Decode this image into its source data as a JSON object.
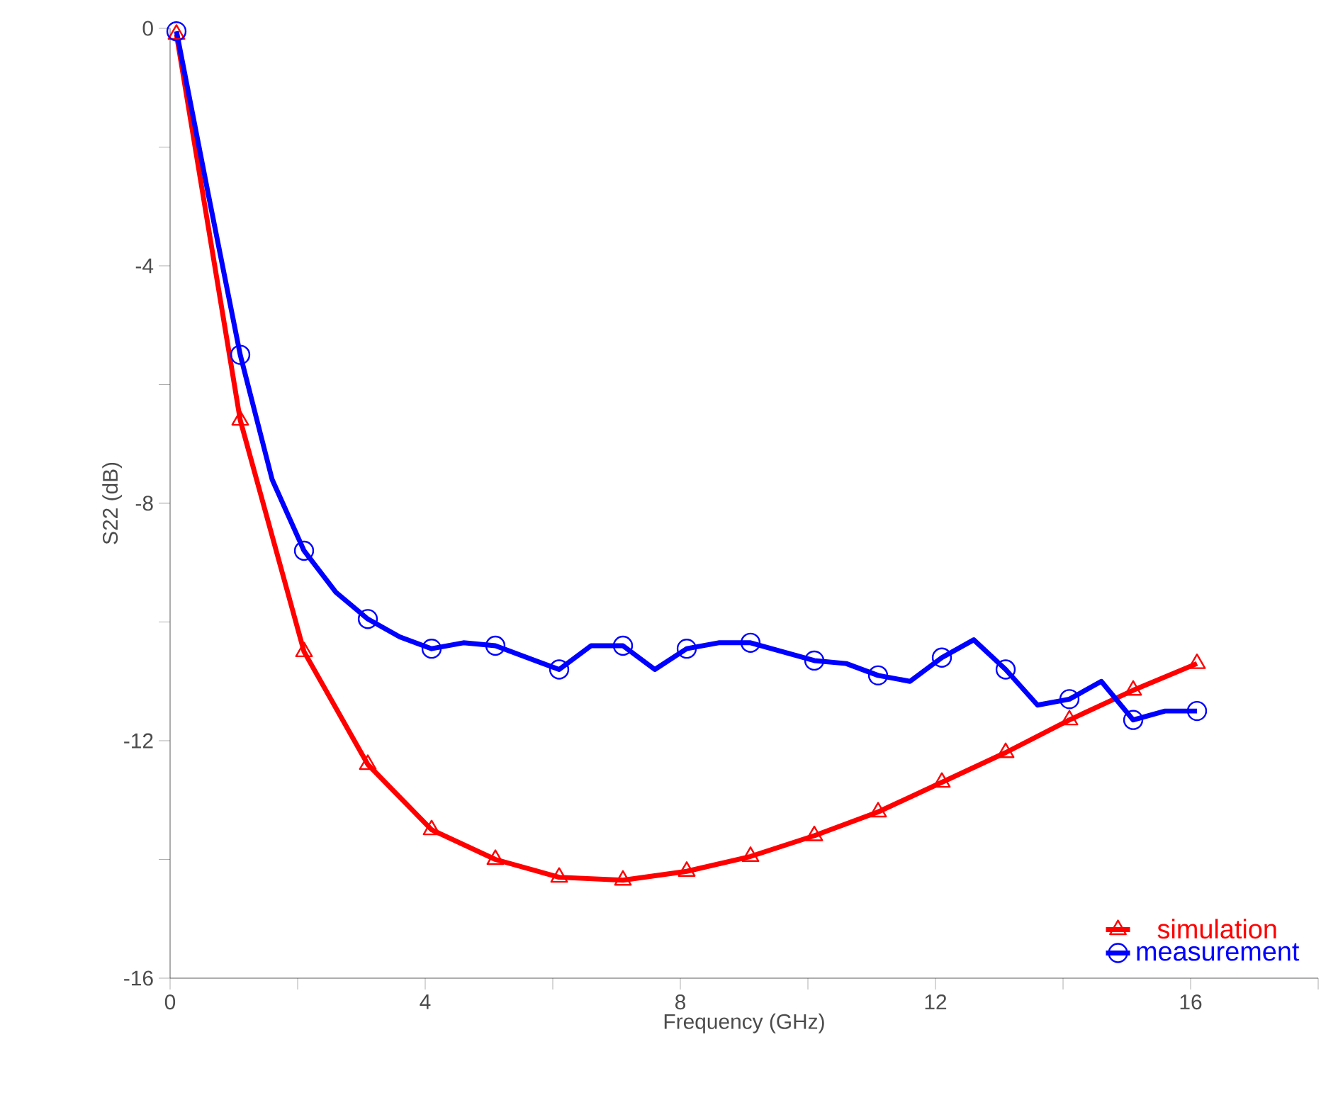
{
  "chart_data": {
    "type": "line",
    "xlabel": "Frequency (GHz)",
    "ylabel": "S22 (dB)",
    "xlim": [
      0,
      18
    ],
    "ylim": [
      -16,
      0
    ],
    "xticks": [
      0,
      {
        "value": 2,
        "label": null
      },
      4,
      {
        "value": 6,
        "label": null
      },
      8,
      {
        "value": 10,
        "label": null
      },
      12,
      {
        "value": 14,
        "label": null
      },
      16,
      {
        "value": 18,
        "label": null
      }
    ],
    "yticks": [
      -16,
      {
        "value": -14,
        "label": null
      },
      -12,
      {
        "value": -10,
        "label": null
      },
      -8,
      {
        "value": -6,
        "label": null
      },
      -4,
      {
        "value": -2,
        "label": null
      },
      0
    ],
    "legend": "bottom right",
    "line_style": "solid",
    "series": [
      {
        "name": "simulation",
        "color": "#ff0000",
        "marker": "triangle",
        "x": [
          0.1,
          1.1,
          2.1,
          3.1,
          4.1,
          5.1,
          6.1,
          7.1,
          8.1,
          9.1,
          10.1,
          11.1,
          12.1,
          13.1,
          14.1,
          15.1,
          16.1
        ],
        "values": [
          -0.1,
          -6.6,
          -10.5,
          -12.4,
          -13.5,
          -14.0,
          -14.3,
          -14.35,
          -14.2,
          -13.95,
          -13.6,
          -13.2,
          -12.7,
          -12.2,
          -11.65,
          -11.15,
          -10.7
        ]
      },
      {
        "name": "measurement",
        "color": "#0000ff",
        "marker": "circle",
        "x": [
          0.1,
          0.6,
          1.1,
          1.6,
          2.1,
          2.6,
          3.1,
          3.6,
          4.1,
          4.6,
          5.1,
          5.6,
          6.1,
          6.6,
          7.1,
          7.6,
          8.1,
          8.6,
          9.1,
          9.6,
          10.1,
          10.6,
          11.1,
          11.6,
          12.1,
          12.6,
          13.1,
          13.6,
          14.1,
          14.6,
          15.1,
          15.6,
          16.1
        ],
        "values": [
          -0.05,
          -2.8,
          -5.5,
          -7.6,
          -8.8,
          -9.5,
          -9.95,
          -10.25,
          -10.45,
          -10.35,
          -10.4,
          -10.6,
          -10.8,
          -10.4,
          -10.4,
          -10.8,
          -10.45,
          -10.35,
          -10.35,
          -10.5,
          -10.65,
          -10.7,
          -10.9,
          -11.0,
          -10.6,
          -10.3,
          -10.8,
          -11.4,
          -11.3,
          -11.0,
          -11.65,
          -11.5,
          -11.5
        ]
      }
    ]
  }
}
